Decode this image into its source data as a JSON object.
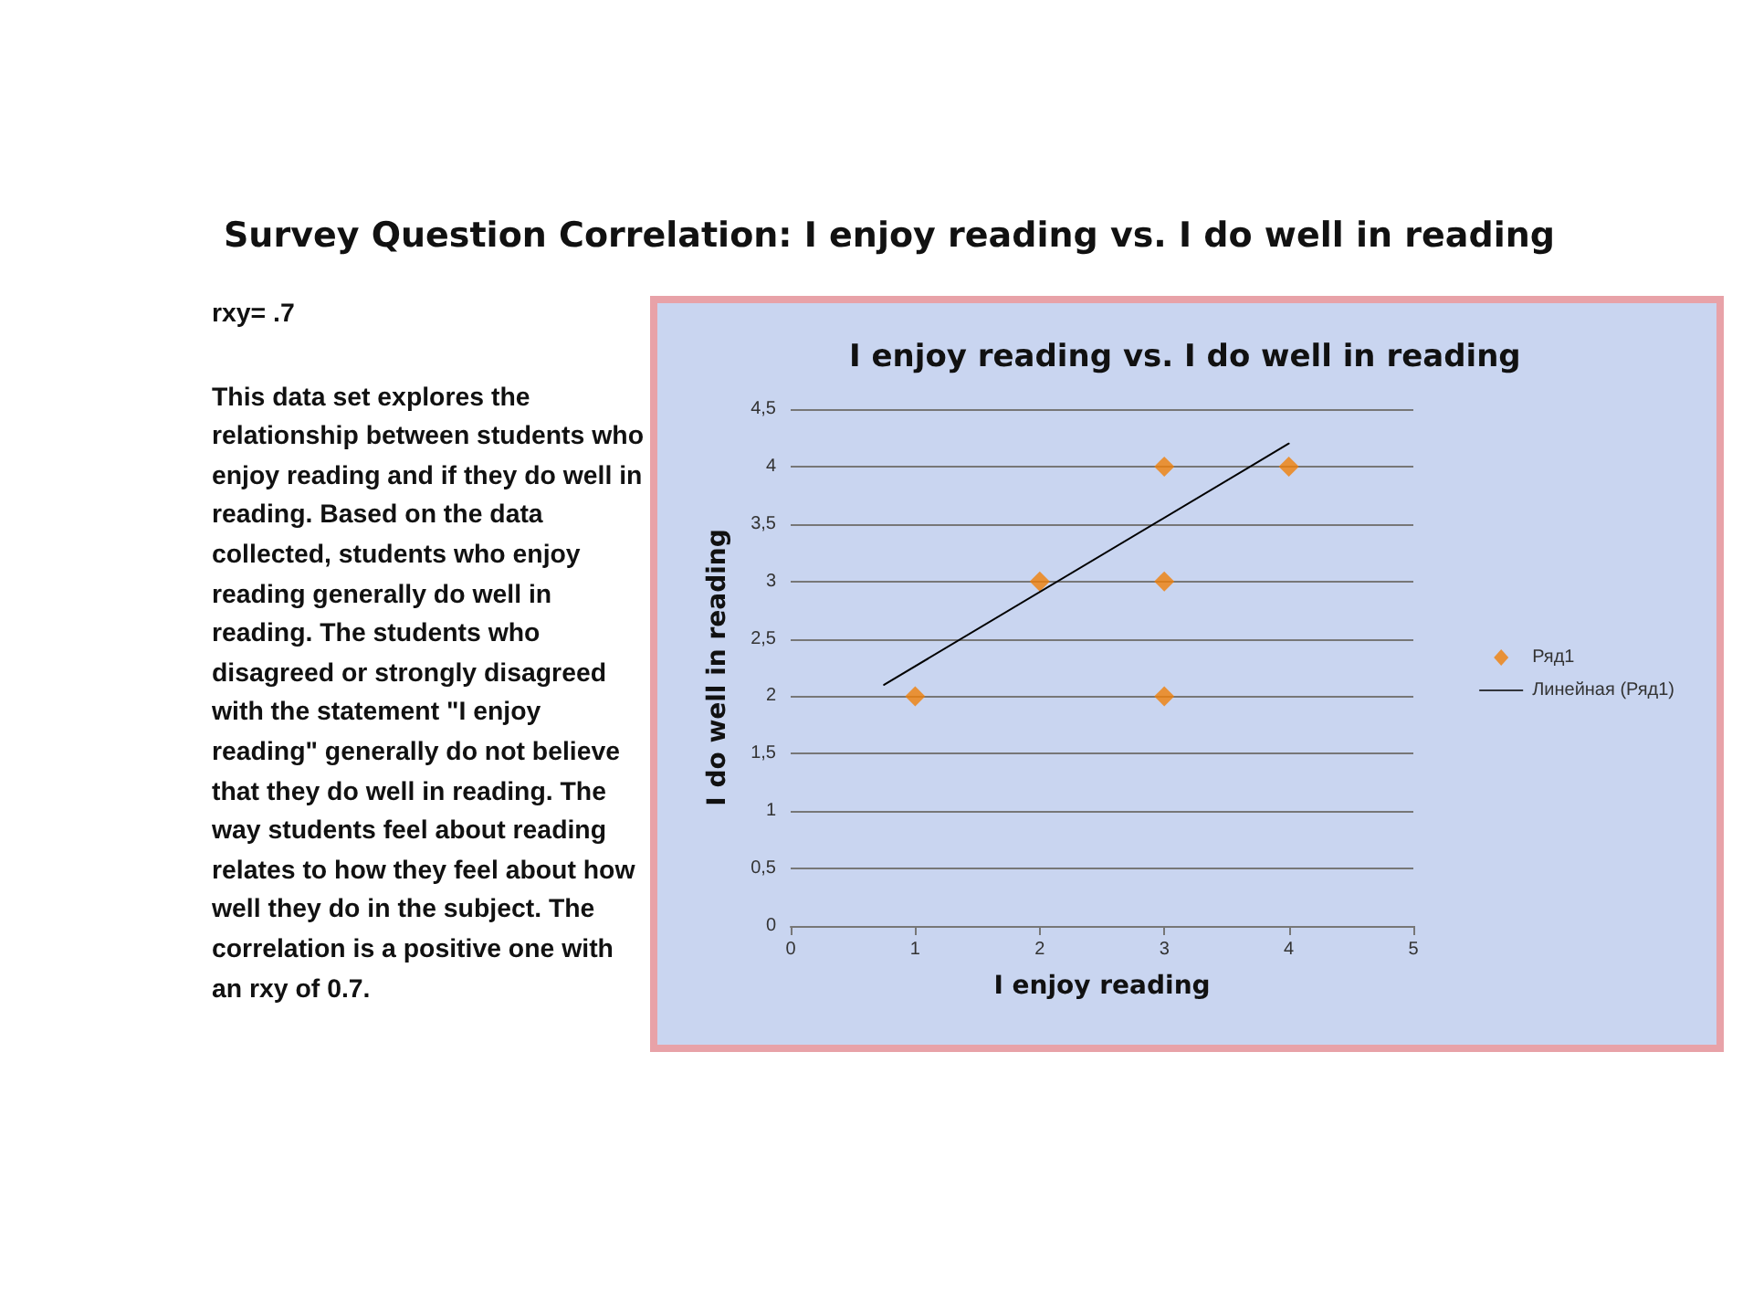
{
  "chart_data": {
    "type": "scatter",
    "title": "Survey Question Correlation: I enjoy reading vs. I do well in reading",
    "subtitle": "I enjoy reading vs. I do well in reading",
    "xlabel": "I enjoy reading",
    "ylabel": "I do well in reading",
    "annotations": [
      "rxy= .7",
      "This data set explores the relationship between students who enjoy reading and if they do well in reading. Based on the data collected, students who enjoy reading generally do well in reading. The students who disagreed or strongly disagreed with the statement \"I enjoy reading\" generally do not believe that they do well in reading. The way students feel about reading relates to how they feel about how well they do in the subject. The correlation is a positive one with an rxy of 0.7."
    ],
    "series": [
      {
        "name": "Ряд1",
        "color": "#f07f09",
        "marker": "diamond",
        "x": [
          1,
          2,
          3,
          3,
          3,
          4
        ],
        "values": [
          2,
          3,
          4,
          3,
          2,
          4
        ]
      },
      {
        "name": "Линейная (Ряд1)",
        "type": "line",
        "color": "#000000",
        "marker": "none",
        "x": [
          0.75,
          4.0
        ],
        "values": [
          2.1,
          4.2
        ]
      }
    ],
    "xlim": [
      0,
      5
    ],
    "xticks": [
      0,
      1,
      2,
      3,
      4,
      5
    ],
    "ylim": [
      0,
      4.5
    ],
    "yticks": [
      {
        "value": 0,
        "label": "0"
      },
      {
        "value": 0.5,
        "label": "0,5"
      },
      {
        "value": 1,
        "label": "1"
      },
      {
        "value": 1.5,
        "label": "1,5"
      },
      {
        "value": 2,
        "label": "2"
      },
      {
        "value": 2.5,
        "label": "2,5"
      },
      {
        "value": 3,
        "label": "3"
      },
      {
        "value": 3.5,
        "label": "3,5"
      },
      {
        "value": 4,
        "label": "4"
      },
      {
        "value": 4.5,
        "label": "4,5"
      }
    ],
    "grid": "y",
    "legend": "right"
  }
}
